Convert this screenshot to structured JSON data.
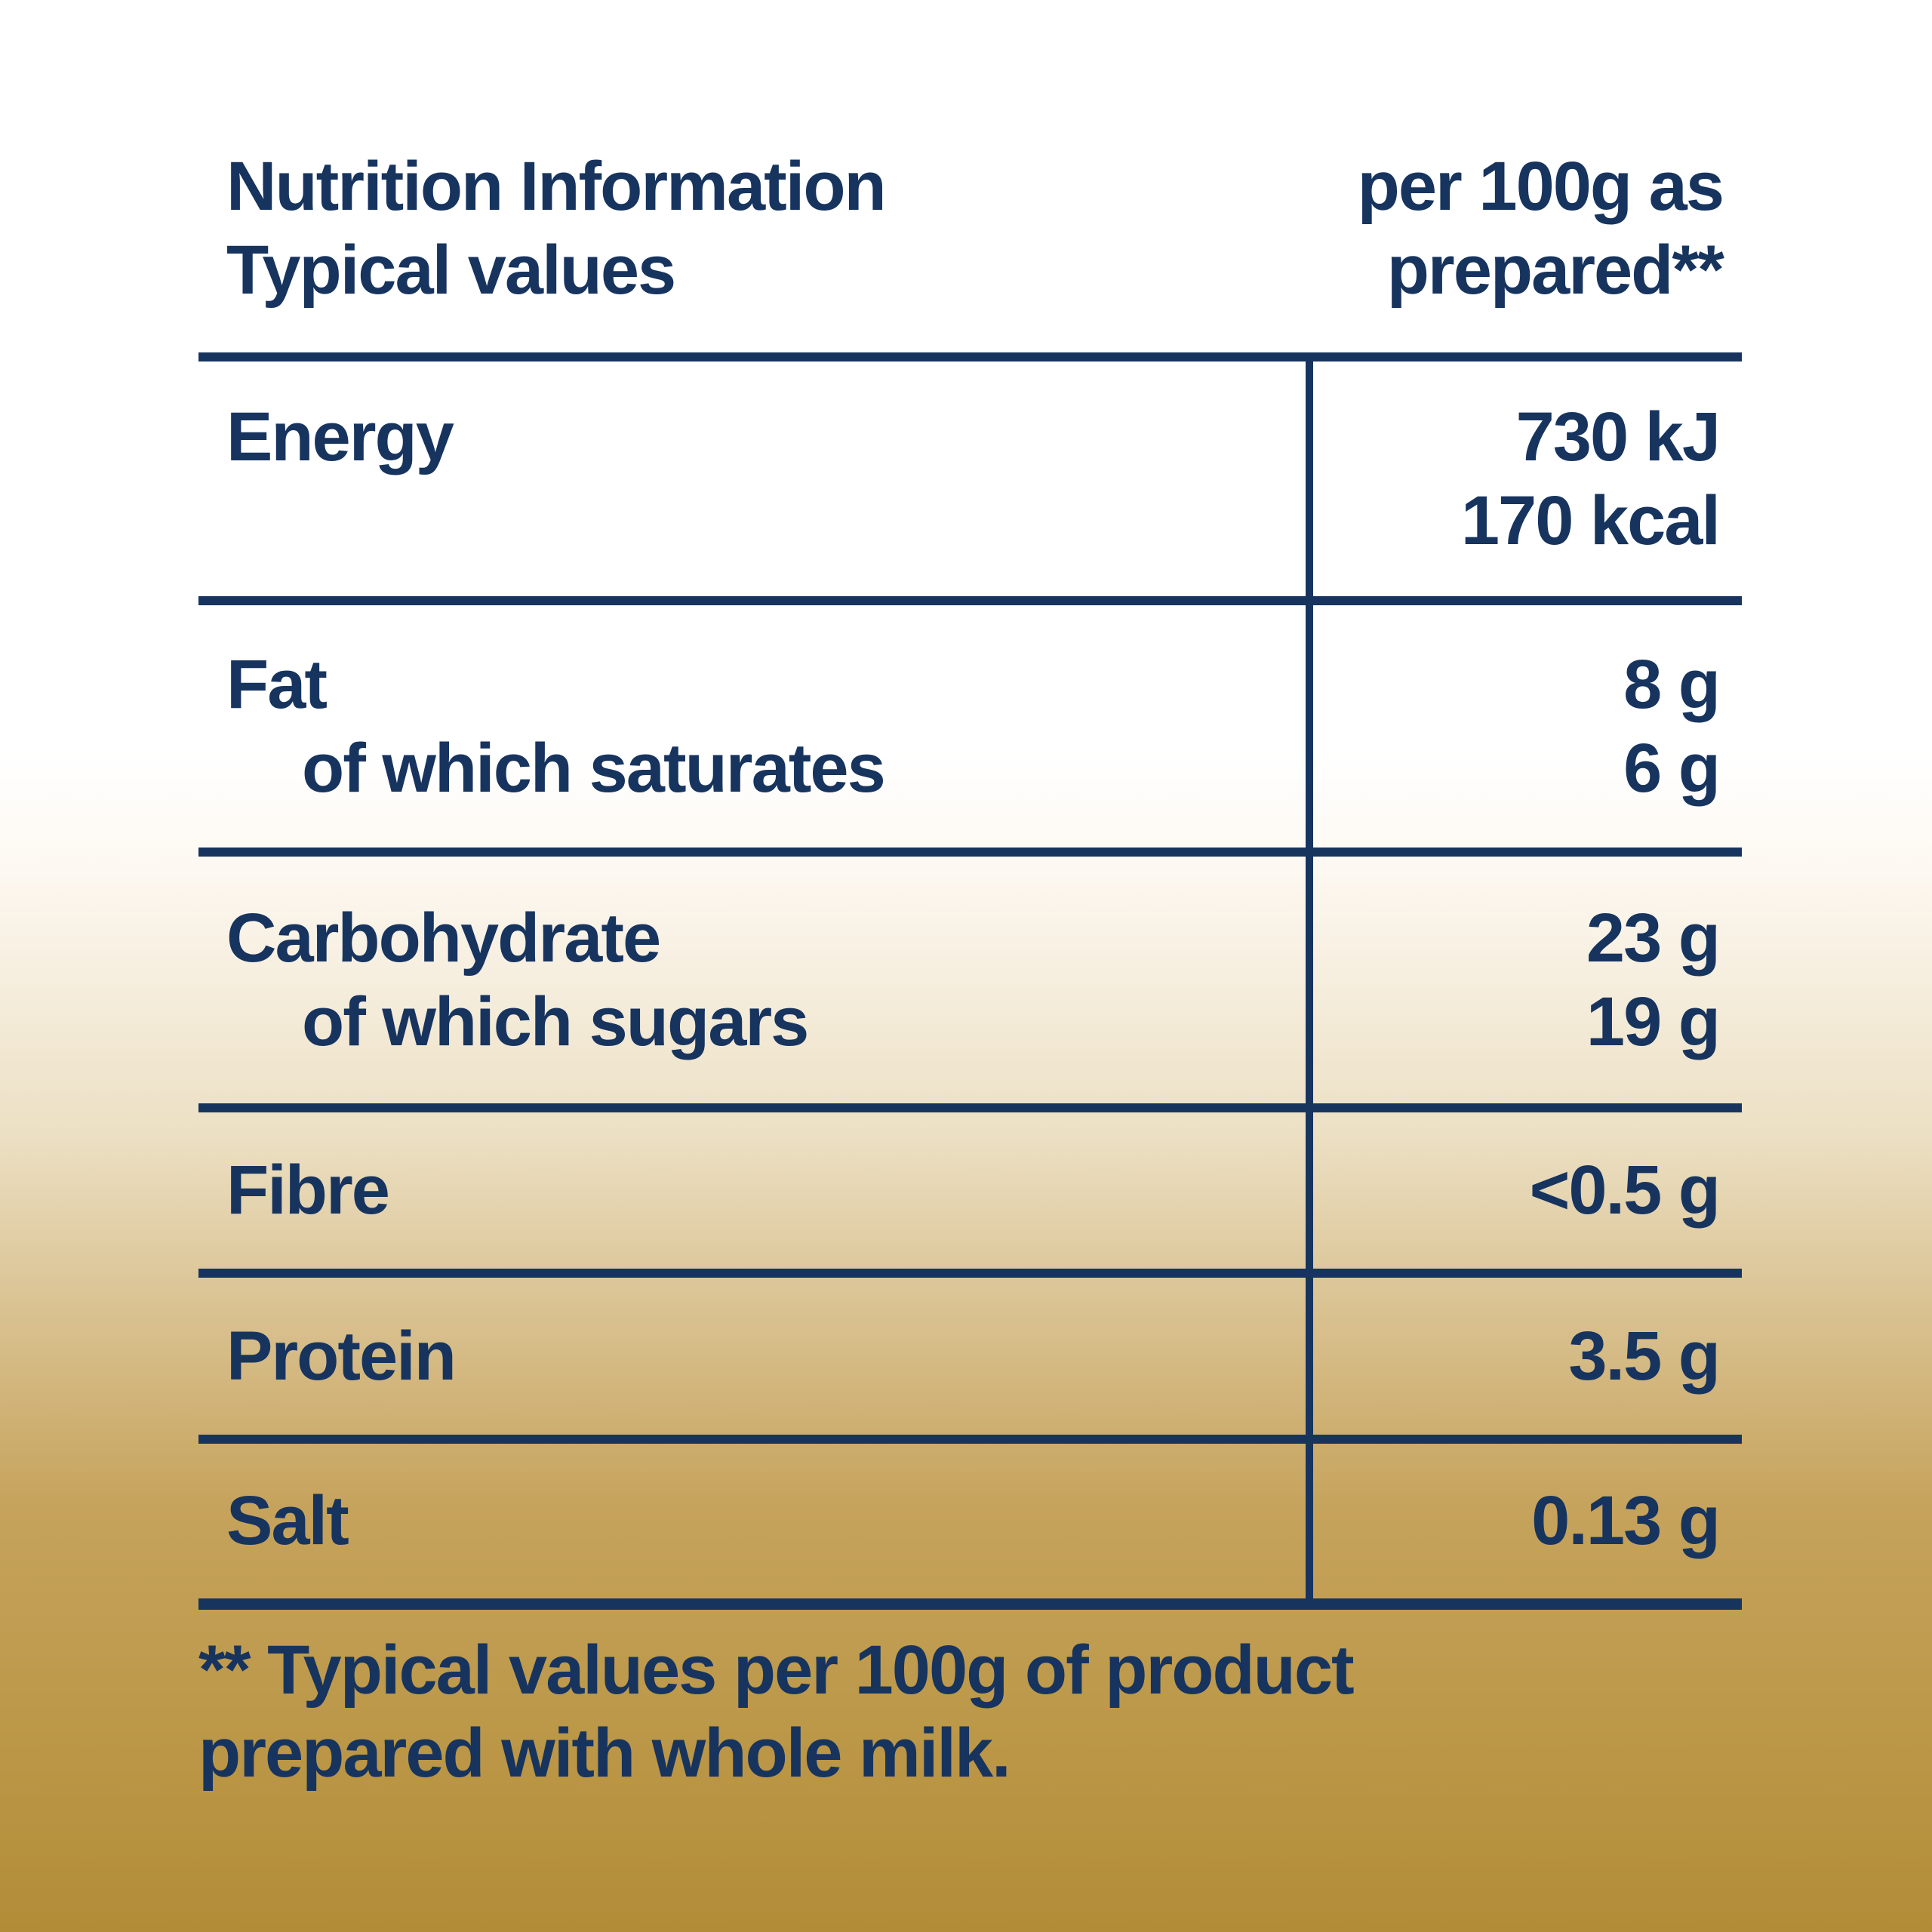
{
  "colors": {
    "text_navy": "#17345f",
    "background_top": "#ffffff",
    "background_bottom": "#b38c38"
  },
  "table": {
    "header": {
      "left_line1": "Nutrition Information",
      "left_line2": "Typical values",
      "right_line1": "per 100g as",
      "right_line2": "prepared**"
    },
    "rows": [
      {
        "label": "Energy",
        "values": [
          "730 kJ",
          "170 kcal"
        ]
      },
      {
        "label": "Fat",
        "sub": "of which saturates",
        "values": [
          "8 g",
          "6 g"
        ]
      },
      {
        "label": "Carbohydrate",
        "sub": "of which sugars",
        "values": [
          "23 g",
          "19 g"
        ]
      },
      {
        "label": "Fibre",
        "values": [
          "<0.5 g"
        ]
      },
      {
        "label": "Protein",
        "values": [
          "3.5 g"
        ]
      },
      {
        "label": "Salt",
        "values": [
          "0.13 g"
        ]
      }
    ],
    "footnote_line1": "** Typical values per 100g of product",
    "footnote_line2": "prepared with whole milk."
  }
}
